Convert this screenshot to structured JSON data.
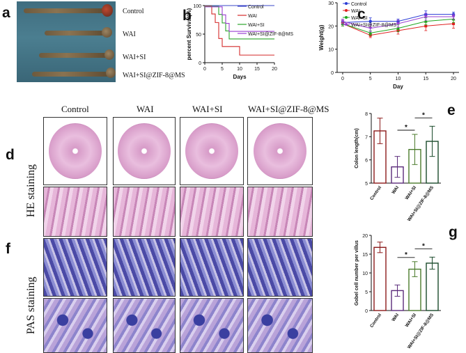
{
  "panels": {
    "a": "a",
    "b": "b",
    "c": "c",
    "d": "d",
    "e": "e",
    "f": "f",
    "g": "g"
  },
  "panel_a": {
    "labels": [
      "Control",
      "WAI",
      "WAI+SI",
      "WAI+SI@ZIF-8@MS"
    ],
    "colors": {
      "background": "#44788a",
      "tissue": "#7a6447"
    }
  },
  "histology": {
    "group_headers": [
      "Control",
      "WAI",
      "WAI+SI",
      "WAI+SI@ZIF-8@MS"
    ],
    "he_label": "HE staining",
    "pas_label": "PAS staining",
    "colors": {
      "he": "#d79bc8",
      "pas": "#4b4aa6"
    }
  },
  "chart_data": [
    {
      "id": "b",
      "type": "line",
      "subtype": "step",
      "ylabel": "percent Survival(%)",
      "xlabel": "Days",
      "xlim": [
        0,
        20
      ],
      "ylim": [
        0,
        100
      ],
      "xticks": [
        "0",
        "5",
        "10",
        "15",
        "20"
      ],
      "yticks": [
        "0",
        "50",
        "100"
      ],
      "legend_position": "top-right",
      "series": [
        {
          "name": "Control",
          "color": "#3b47c9",
          "points": [
            [
              0,
              100
            ],
            [
              20,
              100
            ]
          ]
        },
        {
          "name": "WAI",
          "color": "#d42a2a",
          "points": [
            [
              0,
              100
            ],
            [
              2,
              100
            ],
            [
              2,
              86
            ],
            [
              3,
              86
            ],
            [
              3,
              71
            ],
            [
              4,
              71
            ],
            [
              4,
              43
            ],
            [
              5,
              43
            ],
            [
              5,
              29
            ],
            [
              8,
              29
            ],
            [
              8,
              29
            ],
            [
              10,
              29
            ],
            [
              10,
              14
            ],
            [
              20,
              14
            ]
          ]
        },
        {
          "name": "WAI+SI",
          "color": "#2aa52a",
          "points": [
            [
              0,
              100
            ],
            [
              4,
              100
            ],
            [
              4,
              86
            ],
            [
              5,
              86
            ],
            [
              5,
              71
            ],
            [
              6,
              71
            ],
            [
              6,
              57
            ],
            [
              7,
              57
            ],
            [
              7,
              43
            ],
            [
              20,
              43
            ]
          ]
        },
        {
          "name": "WAI+SI@ZIF-8@MS",
          "color": "#9a3fd0",
          "points": [
            [
              0,
              100
            ],
            [
              5,
              100
            ],
            [
              5,
              86
            ],
            [
              6,
              86
            ],
            [
              6,
              71
            ],
            [
              7,
              71
            ],
            [
              7,
              57
            ],
            [
              20,
              57
            ]
          ]
        }
      ]
    },
    {
      "id": "c",
      "type": "line",
      "ylabel": "Weight(g)",
      "xlabel": "Day",
      "xlim": [
        -1,
        21
      ],
      "ylim": [
        0,
        30
      ],
      "xticks": [
        "0",
        "5",
        "10",
        "15",
        "20"
      ],
      "yticks": [
        "0",
        "10",
        "20",
        "30"
      ],
      "x": [
        0,
        5,
        10,
        15,
        20
      ],
      "legend_position": "top-left",
      "series": [
        {
          "name": "Control",
          "color": "#2a3bd6",
          "values": [
            21.5,
            22,
            22,
            25,
            25
          ],
          "err": [
            1,
            1.5,
            1,
            1.5,
            1
          ]
        },
        {
          "name": "WAI",
          "color": "#e02020",
          "values": [
            21,
            16,
            18,
            20,
            21
          ],
          "err": [
            1,
            1,
            1.5,
            2,
            2
          ]
        },
        {
          "name": "WAI+SI",
          "color": "#1ea51e",
          "values": [
            21,
            17,
            19,
            22,
            23
          ],
          "err": [
            1,
            1,
            1.5,
            1.5,
            1.5
          ]
        },
        {
          "name": "WAI+SI@ZIF-8@MS",
          "color": "#9a3fd0",
          "values": [
            22,
            19,
            21,
            24,
            24
          ],
          "err": [
            1,
            1.5,
            1.5,
            1.5,
            1
          ]
        }
      ]
    },
    {
      "id": "e",
      "type": "bar",
      "ylabel": "Colon length(cm)",
      "categories": [
        "Control",
        "WAI",
        "WAI+SI",
        "WAI+SI@ZIF-8@MS"
      ],
      "values": [
        7.25,
        5.7,
        6.45,
        6.8
      ],
      "err": [
        0.55,
        0.45,
        0.65,
        0.65
      ],
      "colors": [
        "#8b1a1a",
        "#5a2a7a",
        "#4a7a2a",
        "#1a4a2a"
      ],
      "ylim": [
        5,
        8
      ],
      "yticks": [
        "5",
        "6",
        "7",
        "8"
      ],
      "significance": [
        {
          "from": 1,
          "to": 2,
          "label": "*"
        },
        {
          "from": 2,
          "to": 3,
          "label": "*"
        }
      ]
    },
    {
      "id": "g",
      "type": "bar",
      "ylabel": "Gobel cell number per villus",
      "categories": [
        "Control",
        "WAI",
        "WAI+SI",
        "WAI+SI@ZIF-8@MS"
      ],
      "values": [
        16.8,
        5.3,
        11,
        12.6
      ],
      "err": [
        1.4,
        1.5,
        2,
        1.6
      ],
      "colors": [
        "#8b1a1a",
        "#5a2a7a",
        "#4a7a2a",
        "#1a4a2a"
      ],
      "ylim": [
        0,
        20
      ],
      "yticks": [
        "0",
        "5",
        "10",
        "15",
        "20"
      ],
      "significance": [
        {
          "from": 1,
          "to": 2,
          "label": "*"
        },
        {
          "from": 2,
          "to": 3,
          "label": "*"
        }
      ]
    }
  ]
}
